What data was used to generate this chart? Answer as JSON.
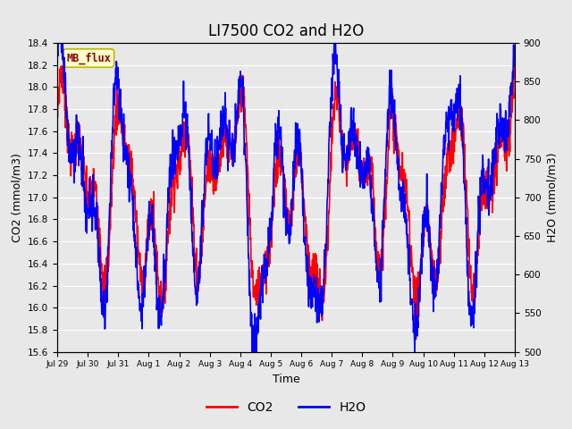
{
  "title": "LI7500 CO2 and H2O",
  "xlabel": "Time",
  "ylabel_left": "CO2 (mmol/m3)",
  "ylabel_right": "H2O (mmol/m3)",
  "co2_color": "#FF0000",
  "h2o_color": "#0000FF",
  "co2_ylim": [
    15.6,
    18.4
  ],
  "h2o_ylim": [
    500,
    900
  ],
  "co2_yticks": [
    15.6,
    15.8,
    16.0,
    16.2,
    16.4,
    16.6,
    16.8,
    17.0,
    17.2,
    17.4,
    17.6,
    17.8,
    18.0,
    18.2,
    18.4
  ],
  "h2o_yticks": [
    500,
    550,
    600,
    650,
    700,
    750,
    800,
    850,
    900
  ],
  "xtick_positions": [
    0,
    1,
    2,
    3,
    4,
    5,
    6,
    7,
    8,
    9,
    10,
    11,
    12,
    13,
    14,
    15
  ],
  "xtick_labels": [
    "Jul 29",
    "Jul 30",
    "Jul 31",
    "Aug 1",
    "Aug 2",
    "Aug 3",
    "Aug 4",
    "Aug 5",
    "Aug 6",
    "Aug 7",
    "Aug 8",
    "Aug 9",
    "Aug 10",
    "Aug 11",
    "Aug 12",
    "Aug 13"
  ],
  "xlim": [
    0,
    15
  ],
  "bg_color": "#E8E8E8",
  "plot_bg_color": "#E8E8E8",
  "legend_label_co2": "CO2",
  "legend_label_h2o": "H2O",
  "watermark_text": "MB_flux",
  "watermark_fg": "#8B0000",
  "watermark_bg": "#FFFFCC",
  "linewidth": 1.2,
  "n_points": 1500,
  "title_fontsize": 12
}
